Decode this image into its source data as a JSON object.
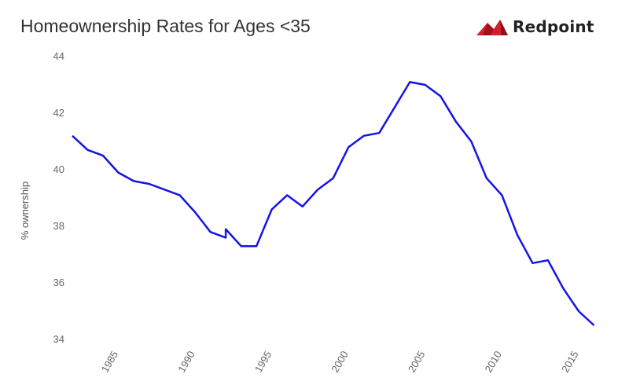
{
  "brand": {
    "name": "Redpoint",
    "accent_color": "#d0202a",
    "logo_icon": "redpoint-mountain-icon"
  },
  "chart_data": {
    "type": "line",
    "title": "Homeownership Rates for Ages <35",
    "xlabel": "",
    "ylabel": "% ownership",
    "xlim": [
      1982,
      2017
    ],
    "ylim": [
      34,
      44
    ],
    "yticks": [
      34,
      36,
      38,
      40,
      42,
      44
    ],
    "xticks": [
      1985,
      1990,
      1995,
      2000,
      2005,
      2010,
      2015
    ],
    "grid": false,
    "legend": "none",
    "series": [
      {
        "color": "#1414e6",
        "points": [
          [
            1982,
            41.2
          ],
          [
            1983,
            40.7
          ],
          [
            1984,
            40.5
          ],
          [
            1985,
            39.9
          ],
          [
            1986,
            39.6
          ],
          [
            1987,
            39.5
          ],
          [
            1988,
            39.3
          ],
          [
            1989,
            39.1
          ],
          [
            1990,
            38.5
          ],
          [
            1991,
            37.8
          ],
          [
            1992,
            37.6
          ],
          [
            1992,
            37.9
          ],
          [
            1993,
            37.3
          ],
          [
            1994,
            37.3
          ],
          [
            1995,
            38.6
          ],
          [
            1996,
            39.1
          ],
          [
            1997,
            38.7
          ],
          [
            1998,
            39.3
          ],
          [
            1999,
            39.7
          ],
          [
            2000,
            40.8
          ],
          [
            2001,
            41.2
          ],
          [
            2002,
            41.3
          ],
          [
            2003,
            42.2
          ],
          [
            2004,
            43.1
          ],
          [
            2005,
            43.0
          ],
          [
            2006,
            42.6
          ],
          [
            2007,
            41.7
          ],
          [
            2008,
            41.0
          ],
          [
            2009,
            39.7
          ],
          [
            2010,
            39.1
          ],
          [
            2011,
            37.7
          ],
          [
            2012,
            36.7
          ],
          [
            2013,
            36.8
          ],
          [
            2014,
            35.8
          ],
          [
            2015,
            35.0
          ],
          [
            2016,
            34.5
          ]
        ]
      }
    ]
  }
}
